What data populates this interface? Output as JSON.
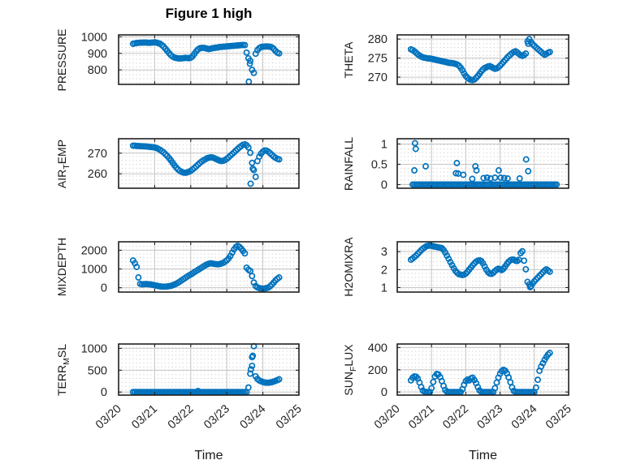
{
  "title": "Figure 1 high",
  "xlabel": "Time",
  "colors": {
    "marker": "#0072BD",
    "axis": "#212121",
    "grid": "#c6c6c6",
    "minor_dot": "#b5b5b5",
    "tick_text": "#262626",
    "title_text": "#000000"
  },
  "x_axis": {
    "tick_labels": [
      "03/20",
      "03/21",
      "03/22",
      "03/23",
      "03/24",
      "03/25"
    ],
    "tick_days": [
      0,
      1,
      2,
      3,
      4,
      5
    ],
    "lim": [
      0,
      5
    ]
  },
  "chart_data": [
    {
      "type": "scatter",
      "id": "pressure",
      "row": 0,
      "col": 0,
      "ylabel_parts": [
        {
          "t": "PRESSURE",
          "sub": false
        }
      ],
      "yticks": [
        800,
        900,
        1000
      ],
      "ylim": [
        712,
        1012
      ],
      "x0": 0.4,
      "dx": 0.05,
      "y": [
        958,
        961,
        963,
        964,
        965,
        965,
        966,
        966,
        965,
        964,
        965,
        966,
        967,
        965,
        962,
        958,
        950,
        940,
        928,
        915,
        901,
        889,
        880,
        875,
        872,
        870,
        869,
        870,
        871,
        873,
        872,
        871,
        874,
        882,
        897,
        912,
        924,
        931,
        933,
        934,
        932,
        929,
        926,
        928,
        931,
        933,
        935,
        936,
        938,
        939,
        940,
        941,
        942,
        943,
        944,
        945,
        946,
        947,
        948,
        949,
        950,
        951,
        950,
        905,
        870,
        855,
        800,
        782,
        898,
        920,
        932,
        938,
        940,
        941,
        942,
        941,
        940,
        936,
        928,
        915,
        905,
        900
      ],
      "extra": [
        [
          3.61,
          728
        ],
        [
          3.64,
          838
        ]
      ]
    },
    {
      "type": "scatter",
      "id": "theta",
      "row": 0,
      "col": 1,
      "ylabel_parts": [
        {
          "t": "THETA",
          "sub": false
        }
      ],
      "yticks": [
        270,
        275,
        280
      ],
      "ylim": [
        268.1,
        281.1
      ],
      "x0": 0.4,
      "dx": 0.05,
      "y": [
        277.3,
        277.1,
        276.8,
        276.4,
        276.0,
        275.7,
        275.4,
        275.2,
        275.1,
        275.0,
        274.9,
        274.9,
        274.8,
        274.7,
        274.6,
        274.5,
        274.4,
        274.3,
        274.2,
        274.1,
        274.0,
        273.9,
        273.8,
        273.7,
        273.7,
        273.6,
        273.5,
        273.3,
        273.0,
        272.5,
        271.8,
        271.0,
        270.3,
        269.8,
        269.5,
        269.3,
        269.2,
        269.4,
        269.8,
        270.3,
        270.9,
        271.5,
        272.0,
        272.4,
        272.6,
        272.8,
        272.9,
        272.7,
        272.4,
        272.2,
        272.3,
        272.6,
        273.0,
        273.5,
        274.0,
        274.5,
        275.0,
        275.5,
        275.9,
        276.3,
        276.6,
        276.8,
        276.5,
        276.1,
        275.8,
        275.6,
        275.8,
        276.2,
        279.4,
        280.0,
        279.2,
        278.6,
        278.2,
        277.8,
        277.4,
        277.0,
        276.6,
        276.2,
        275.9,
        276.1,
        276.4,
        276.6
      ],
      "extra": [
        [
          3.82,
          278.8
        ]
      ]
    },
    {
      "type": "scatter",
      "id": "air-temp",
      "row": 1,
      "col": 0,
      "ylabel_parts": [
        {
          "t": "AIR",
          "sub": false
        },
        {
          "t": "T",
          "sub": true
        },
        {
          "t": "EMP",
          "sub": false
        }
      ],
      "yticks": [
        260,
        270
      ],
      "ylim": [
        253,
        277
      ],
      "x0": 0.4,
      "dx": 0.05,
      "y": [
        273.6,
        273.6,
        273.5,
        273.5,
        273.4,
        273.4,
        273.3,
        273.3,
        273.2,
        273.1,
        273.0,
        272.9,
        272.8,
        272.5,
        272.1,
        271.6,
        271.0,
        270.3,
        269.5,
        268.6,
        267.6,
        266.5,
        265.3,
        264.1,
        263.0,
        262.1,
        261.4,
        260.9,
        260.6,
        260.5,
        260.7,
        261.0,
        261.5,
        262.1,
        262.8,
        263.6,
        264.4,
        265.2,
        265.9,
        266.5,
        267.0,
        267.5,
        267.8,
        268.0,
        267.9,
        267.6,
        267.2,
        266.8,
        266.4,
        266.2,
        266.3,
        266.7,
        267.3,
        268.0,
        268.8,
        269.6,
        270.4,
        271.2,
        272.0,
        272.8,
        273.5,
        274.1,
        274.3,
        273.8,
        272.8,
        270.2,
        265.3,
        261.8,
        258.5,
        266.2,
        268.3,
        269.8,
        270.8,
        271.3,
        271.2,
        270.7,
        270.0,
        269.2,
        268.4,
        267.8,
        267.3,
        267.0
      ],
      "extra": [
        [
          3.66,
          255.2
        ],
        [
          3.72,
          262.5
        ]
      ]
    },
    {
      "type": "scatter",
      "id": "rainfall",
      "row": 1,
      "col": 1,
      "ylabel_parts": [
        {
          "t": "RAINFALL",
          "sub": false
        }
      ],
      "yticks": [
        0,
        0.5,
        1
      ],
      "ylim": [
        -0.09,
        1.13
      ],
      "x0": 0.45,
      "dx": 0.05,
      "y": [
        0,
        0,
        0,
        0,
        0,
        0,
        0,
        0,
        0,
        0,
        0,
        0,
        0,
        0,
        0,
        0,
        0,
        0,
        0,
        0,
        0,
        0,
        0,
        0,
        0,
        0,
        0,
        0,
        0,
        0,
        0,
        0,
        0,
        0,
        0,
        0,
        0,
        0,
        0,
        0,
        0,
        0,
        0,
        0,
        0,
        0,
        0,
        0,
        0,
        0,
        0,
        0,
        0,
        0,
        0,
        0,
        0,
        0,
        0,
        0,
        0,
        0,
        0,
        0,
        0,
        0,
        0,
        0,
        0,
        0,
        0,
        0,
        0,
        0,
        0,
        0,
        0,
        0,
        0,
        0,
        0,
        0,
        0,
        0,
        0
      ],
      "extra": [
        [
          0.5,
          0.35
        ],
        [
          0.52,
          1.02
        ],
        [
          0.54,
          0.88
        ],
        [
          0.83,
          0.45
        ],
        [
          1.71,
          0.28
        ],
        [
          1.74,
          0.53
        ],
        [
          1.78,
          0.27
        ],
        [
          1.93,
          0.24
        ],
        [
          2.19,
          0.14
        ],
        [
          2.28,
          0.45
        ],
        [
          2.31,
          0.35
        ],
        [
          2.52,
          0.16
        ],
        [
          2.62,
          0.17
        ],
        [
          2.72,
          0.15
        ],
        [
          2.85,
          0.17
        ],
        [
          2.96,
          0.35
        ],
        [
          3.02,
          0.17
        ],
        [
          3.12,
          0.16
        ],
        [
          3.22,
          0.15
        ],
        [
          3.57,
          0.15
        ],
        [
          3.76,
          0.62
        ],
        [
          3.82,
          0.33
        ]
      ]
    },
    {
      "type": "scatter",
      "id": "mixdepth",
      "row": 2,
      "col": 0,
      "ylabel_parts": [
        {
          "t": "MIXDEPTH",
          "sub": false
        }
      ],
      "yticks": [
        0,
        1000,
        2000
      ],
      "ylim": [
        -230,
        2450
      ],
      "x0": 0.4,
      "dx": 0.05,
      "y": [
        1450,
        1310,
        1110,
        550,
        210,
        180,
        190,
        200,
        195,
        185,
        170,
        150,
        130,
        110,
        90,
        75,
        65,
        60,
        60,
        70,
        85,
        105,
        135,
        170,
        215,
        270,
        330,
        395,
        460,
        525,
        590,
        650,
        710,
        770,
        830,
        890,
        950,
        1010,
        1070,
        1130,
        1190,
        1240,
        1280,
        1300,
        1290,
        1270,
        1255,
        1250,
        1260,
        1290,
        1330,
        1390,
        1460,
        1560,
        1700,
        1870,
        2040,
        2170,
        2240,
        2180,
        2080,
        1960,
        1830,
        1070,
        960,
        900,
        620,
        280,
        90,
        20,
        -20,
        -40,
        -50,
        -40,
        -20,
        10,
        80,
        170,
        280,
        390,
        480,
        550
      ],
      "extra": []
    },
    {
      "type": "scatter",
      "id": "h2omixra",
      "row": 2,
      "col": 1,
      "ylabel_parts": [
        {
          "t": "H2OMIXRA",
          "sub": false
        }
      ],
      "yticks": [
        1,
        2,
        3
      ],
      "ylim": [
        0.75,
        3.55
      ],
      "x0": 0.4,
      "dx": 0.05,
      "y": [
        2.55,
        2.62,
        2.7,
        2.78,
        2.88,
        2.98,
        3.08,
        3.17,
        3.24,
        3.3,
        3.33,
        3.34,
        3.32,
        3.3,
        3.28,
        3.26,
        3.24,
        3.22,
        3.2,
        3.1,
        2.95,
        2.78,
        2.6,
        2.42,
        2.25,
        2.08,
        1.93,
        1.82,
        1.75,
        1.72,
        1.7,
        1.72,
        1.78,
        1.88,
        2.0,
        2.12,
        2.24,
        2.35,
        2.44,
        2.5,
        2.52,
        2.48,
        2.35,
        2.18,
        2.0,
        1.86,
        1.78,
        1.76,
        1.82,
        1.92,
        2.0,
        2.05,
        2.02,
        1.98,
        2.05,
        2.18,
        2.32,
        2.44,
        2.52,
        2.56,
        2.55,
        2.5,
        2.48,
        2.55,
        2.92,
        3.02,
        2.5,
        2.02,
        1.32,
        1.18,
        1.08,
        1.22,
        1.35,
        1.45,
        1.55,
        1.65,
        1.75,
        1.85,
        1.95,
        2.02,
        1.95,
        1.88
      ],
      "extra": [
        [
          3.88,
          1.02
        ]
      ]
    },
    {
      "type": "scatter",
      "id": "terr-msl",
      "row": 3,
      "col": 0,
      "ylabel_parts": [
        {
          "t": "TERR",
          "sub": false
        },
        {
          "t": "M",
          "sub": true
        },
        {
          "t": "SL",
          "sub": false
        }
      ],
      "yticks": [
        0,
        500,
        1000
      ],
      "ylim": [
        -70,
        1100
      ],
      "x0": 0.4,
      "dx": 0.05,
      "y": [
        0,
        0,
        0,
        0,
        0,
        0,
        0,
        0,
        0,
        0,
        0,
        0,
        0,
        0,
        0,
        0,
        0,
        0,
        0,
        0,
        0,
        0,
        0,
        0,
        0,
        0,
        0,
        0,
        0,
        0,
        0,
        0,
        0,
        0,
        0,
        0,
        25,
        0,
        0,
        0,
        0,
        0,
        0,
        0,
        0,
        0,
        0,
        0,
        0,
        0,
        0,
        0,
        0,
        0,
        0,
        0,
        0,
        0,
        0,
        0,
        0,
        0,
        0,
        0,
        105,
        420,
        600,
        1050,
        360,
        300,
        265,
        245,
        230,
        220,
        215,
        215,
        220,
        228,
        240,
        255,
        272,
        292
      ],
      "extra": [
        [
          3.67,
          520
        ],
        [
          3.7,
          800
        ],
        [
          3.72,
          830
        ]
      ]
    },
    {
      "type": "scatter",
      "id": "sun-flux",
      "row": 3,
      "col": 1,
      "ylabel_parts": [
        {
          "t": "SUN",
          "sub": false
        },
        {
          "t": "F",
          "sub": true
        },
        {
          "t": "LUX",
          "sub": false
        }
      ],
      "yticks": [
        0,
        200,
        400
      ],
      "ylim": [
        -28,
        432
      ],
      "x0": 0.4,
      "dx": 0.05,
      "y": [
        105,
        128,
        140,
        138,
        120,
        85,
        45,
        12,
        2,
        0,
        0,
        0,
        35,
        90,
        140,
        162,
        158,
        135,
        98,
        55,
        18,
        3,
        0,
        0,
        0,
        0,
        0,
        0,
        0,
        0,
        25,
        65,
        98,
        112,
        104,
        122,
        130,
        108,
        80,
        45,
        14,
        2,
        0,
        0,
        0,
        0,
        0,
        0,
        0,
        35,
        85,
        130,
        165,
        188,
        200,
        192,
        168,
        132,
        88,
        42,
        10,
        2,
        0,
        0,
        0,
        0,
        0,
        0,
        0,
        0,
        0,
        0,
        0,
        40,
        110,
        190,
        230,
        260,
        290,
        315,
        338,
        352
      ],
      "extra": []
    }
  ]
}
